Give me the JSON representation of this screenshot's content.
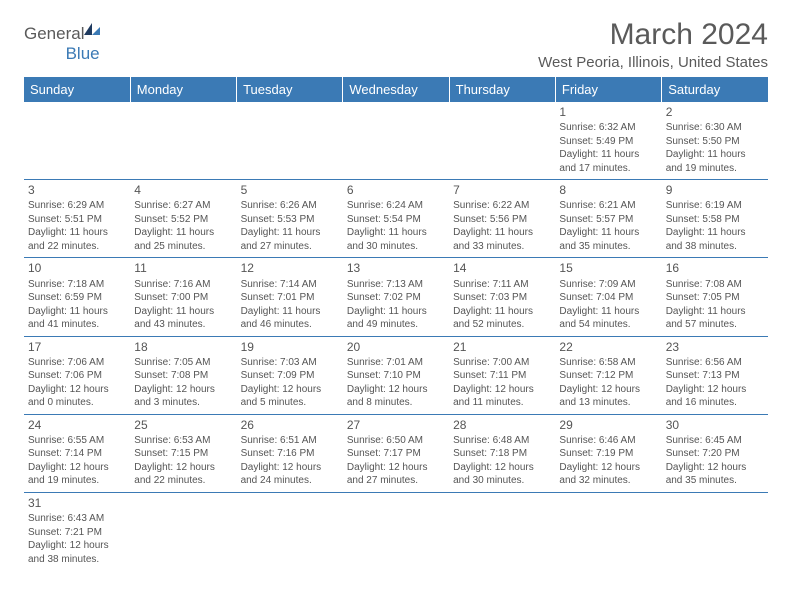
{
  "brand": {
    "general": "General",
    "blue": "Blue"
  },
  "title": "March 2024",
  "location": "West Peoria, Illinois, United States",
  "weekdays": [
    "Sunday",
    "Monday",
    "Tuesday",
    "Wednesday",
    "Thursday",
    "Friday",
    "Saturday"
  ],
  "colors": {
    "header_bg": "#3b7ab5",
    "header_text": "#ffffff",
    "border": "#3b7ab5",
    "text": "#555555"
  },
  "typography": {
    "title_fontsize": 30,
    "location_fontsize": 15,
    "weekday_fontsize": 13,
    "cell_fontsize": 10,
    "daynum_fontsize": 12
  },
  "weeks": [
    [
      null,
      null,
      null,
      null,
      null,
      {
        "n": "1",
        "sr": "Sunrise: 6:32 AM",
        "ss": "Sunset: 5:49 PM",
        "d1": "Daylight: 11 hours",
        "d2": "and 17 minutes."
      },
      {
        "n": "2",
        "sr": "Sunrise: 6:30 AM",
        "ss": "Sunset: 5:50 PM",
        "d1": "Daylight: 11 hours",
        "d2": "and 19 minutes."
      }
    ],
    [
      {
        "n": "3",
        "sr": "Sunrise: 6:29 AM",
        "ss": "Sunset: 5:51 PM",
        "d1": "Daylight: 11 hours",
        "d2": "and 22 minutes."
      },
      {
        "n": "4",
        "sr": "Sunrise: 6:27 AM",
        "ss": "Sunset: 5:52 PM",
        "d1": "Daylight: 11 hours",
        "d2": "and 25 minutes."
      },
      {
        "n": "5",
        "sr": "Sunrise: 6:26 AM",
        "ss": "Sunset: 5:53 PM",
        "d1": "Daylight: 11 hours",
        "d2": "and 27 minutes."
      },
      {
        "n": "6",
        "sr": "Sunrise: 6:24 AM",
        "ss": "Sunset: 5:54 PM",
        "d1": "Daylight: 11 hours",
        "d2": "and 30 minutes."
      },
      {
        "n": "7",
        "sr": "Sunrise: 6:22 AM",
        "ss": "Sunset: 5:56 PM",
        "d1": "Daylight: 11 hours",
        "d2": "and 33 minutes."
      },
      {
        "n": "8",
        "sr": "Sunrise: 6:21 AM",
        "ss": "Sunset: 5:57 PM",
        "d1": "Daylight: 11 hours",
        "d2": "and 35 minutes."
      },
      {
        "n": "9",
        "sr": "Sunrise: 6:19 AM",
        "ss": "Sunset: 5:58 PM",
        "d1": "Daylight: 11 hours",
        "d2": "and 38 minutes."
      }
    ],
    [
      {
        "n": "10",
        "sr": "Sunrise: 7:18 AM",
        "ss": "Sunset: 6:59 PM",
        "d1": "Daylight: 11 hours",
        "d2": "and 41 minutes."
      },
      {
        "n": "11",
        "sr": "Sunrise: 7:16 AM",
        "ss": "Sunset: 7:00 PM",
        "d1": "Daylight: 11 hours",
        "d2": "and 43 minutes."
      },
      {
        "n": "12",
        "sr": "Sunrise: 7:14 AM",
        "ss": "Sunset: 7:01 PM",
        "d1": "Daylight: 11 hours",
        "d2": "and 46 minutes."
      },
      {
        "n": "13",
        "sr": "Sunrise: 7:13 AM",
        "ss": "Sunset: 7:02 PM",
        "d1": "Daylight: 11 hours",
        "d2": "and 49 minutes."
      },
      {
        "n": "14",
        "sr": "Sunrise: 7:11 AM",
        "ss": "Sunset: 7:03 PM",
        "d1": "Daylight: 11 hours",
        "d2": "and 52 minutes."
      },
      {
        "n": "15",
        "sr": "Sunrise: 7:09 AM",
        "ss": "Sunset: 7:04 PM",
        "d1": "Daylight: 11 hours",
        "d2": "and 54 minutes."
      },
      {
        "n": "16",
        "sr": "Sunrise: 7:08 AM",
        "ss": "Sunset: 7:05 PM",
        "d1": "Daylight: 11 hours",
        "d2": "and 57 minutes."
      }
    ],
    [
      {
        "n": "17",
        "sr": "Sunrise: 7:06 AM",
        "ss": "Sunset: 7:06 PM",
        "d1": "Daylight: 12 hours",
        "d2": "and 0 minutes."
      },
      {
        "n": "18",
        "sr": "Sunrise: 7:05 AM",
        "ss": "Sunset: 7:08 PM",
        "d1": "Daylight: 12 hours",
        "d2": "and 3 minutes."
      },
      {
        "n": "19",
        "sr": "Sunrise: 7:03 AM",
        "ss": "Sunset: 7:09 PM",
        "d1": "Daylight: 12 hours",
        "d2": "and 5 minutes."
      },
      {
        "n": "20",
        "sr": "Sunrise: 7:01 AM",
        "ss": "Sunset: 7:10 PM",
        "d1": "Daylight: 12 hours",
        "d2": "and 8 minutes."
      },
      {
        "n": "21",
        "sr": "Sunrise: 7:00 AM",
        "ss": "Sunset: 7:11 PM",
        "d1": "Daylight: 12 hours",
        "d2": "and 11 minutes."
      },
      {
        "n": "22",
        "sr": "Sunrise: 6:58 AM",
        "ss": "Sunset: 7:12 PM",
        "d1": "Daylight: 12 hours",
        "d2": "and 13 minutes."
      },
      {
        "n": "23",
        "sr": "Sunrise: 6:56 AM",
        "ss": "Sunset: 7:13 PM",
        "d1": "Daylight: 12 hours",
        "d2": "and 16 minutes."
      }
    ],
    [
      {
        "n": "24",
        "sr": "Sunrise: 6:55 AM",
        "ss": "Sunset: 7:14 PM",
        "d1": "Daylight: 12 hours",
        "d2": "and 19 minutes."
      },
      {
        "n": "25",
        "sr": "Sunrise: 6:53 AM",
        "ss": "Sunset: 7:15 PM",
        "d1": "Daylight: 12 hours",
        "d2": "and 22 minutes."
      },
      {
        "n": "26",
        "sr": "Sunrise: 6:51 AM",
        "ss": "Sunset: 7:16 PM",
        "d1": "Daylight: 12 hours",
        "d2": "and 24 minutes."
      },
      {
        "n": "27",
        "sr": "Sunrise: 6:50 AM",
        "ss": "Sunset: 7:17 PM",
        "d1": "Daylight: 12 hours",
        "d2": "and 27 minutes."
      },
      {
        "n": "28",
        "sr": "Sunrise: 6:48 AM",
        "ss": "Sunset: 7:18 PM",
        "d1": "Daylight: 12 hours",
        "d2": "and 30 minutes."
      },
      {
        "n": "29",
        "sr": "Sunrise: 6:46 AM",
        "ss": "Sunset: 7:19 PM",
        "d1": "Daylight: 12 hours",
        "d2": "and 32 minutes."
      },
      {
        "n": "30",
        "sr": "Sunrise: 6:45 AM",
        "ss": "Sunset: 7:20 PM",
        "d1": "Daylight: 12 hours",
        "d2": "and 35 minutes."
      }
    ],
    [
      {
        "n": "31",
        "sr": "Sunrise: 6:43 AM",
        "ss": "Sunset: 7:21 PM",
        "d1": "Daylight: 12 hours",
        "d2": "and 38 minutes."
      },
      null,
      null,
      null,
      null,
      null,
      null
    ]
  ]
}
